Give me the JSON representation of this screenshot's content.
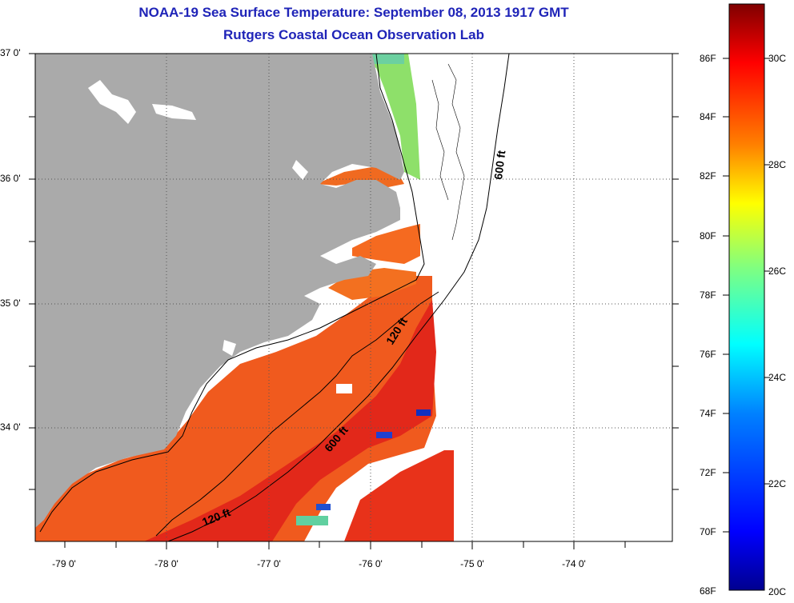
{
  "title_line1": "NOAA-19 Sea Surface Temperature:  September 08, 2013 1917 GMT",
  "title_line2": "Rutgers Coastal Ocean Observation Lab",
  "lat_labels": [
    "37 0'",
    "36 0'",
    "35 0'",
    "34 0'"
  ],
  "lon_labels": [
    "-79 0'",
    "-78 0'",
    "-77 0'",
    "-76 0'",
    "-75 0'",
    "-74 0'"
  ],
  "contour_labels": {
    "c600_north": "600 ft",
    "c120_mid": "120 ft",
    "c600_south": "600 ft",
    "c120_south": "120 ft"
  },
  "colorbar": {
    "fahrenheit": [
      "86F",
      "84F",
      "82F",
      "80F",
      "78F",
      "76F",
      "74F",
      "72F",
      "70F",
      "68F"
    ],
    "celsius": [
      "30C",
      "28C",
      "26C",
      "24C",
      "22C",
      "20C"
    ],
    "stops": [
      "#7f0000",
      "#ff0000",
      "#ff8000",
      "#ffff00",
      "#80ff80",
      "#00ffff",
      "#0080ff",
      "#0000ff",
      "#00008f"
    ]
  },
  "colors": {
    "land": "#aaaaaa",
    "warm_water": "#f0501e",
    "hot_water": "#e02010",
    "cool_water": "#8fe060",
    "title": "#1f24b8"
  }
}
